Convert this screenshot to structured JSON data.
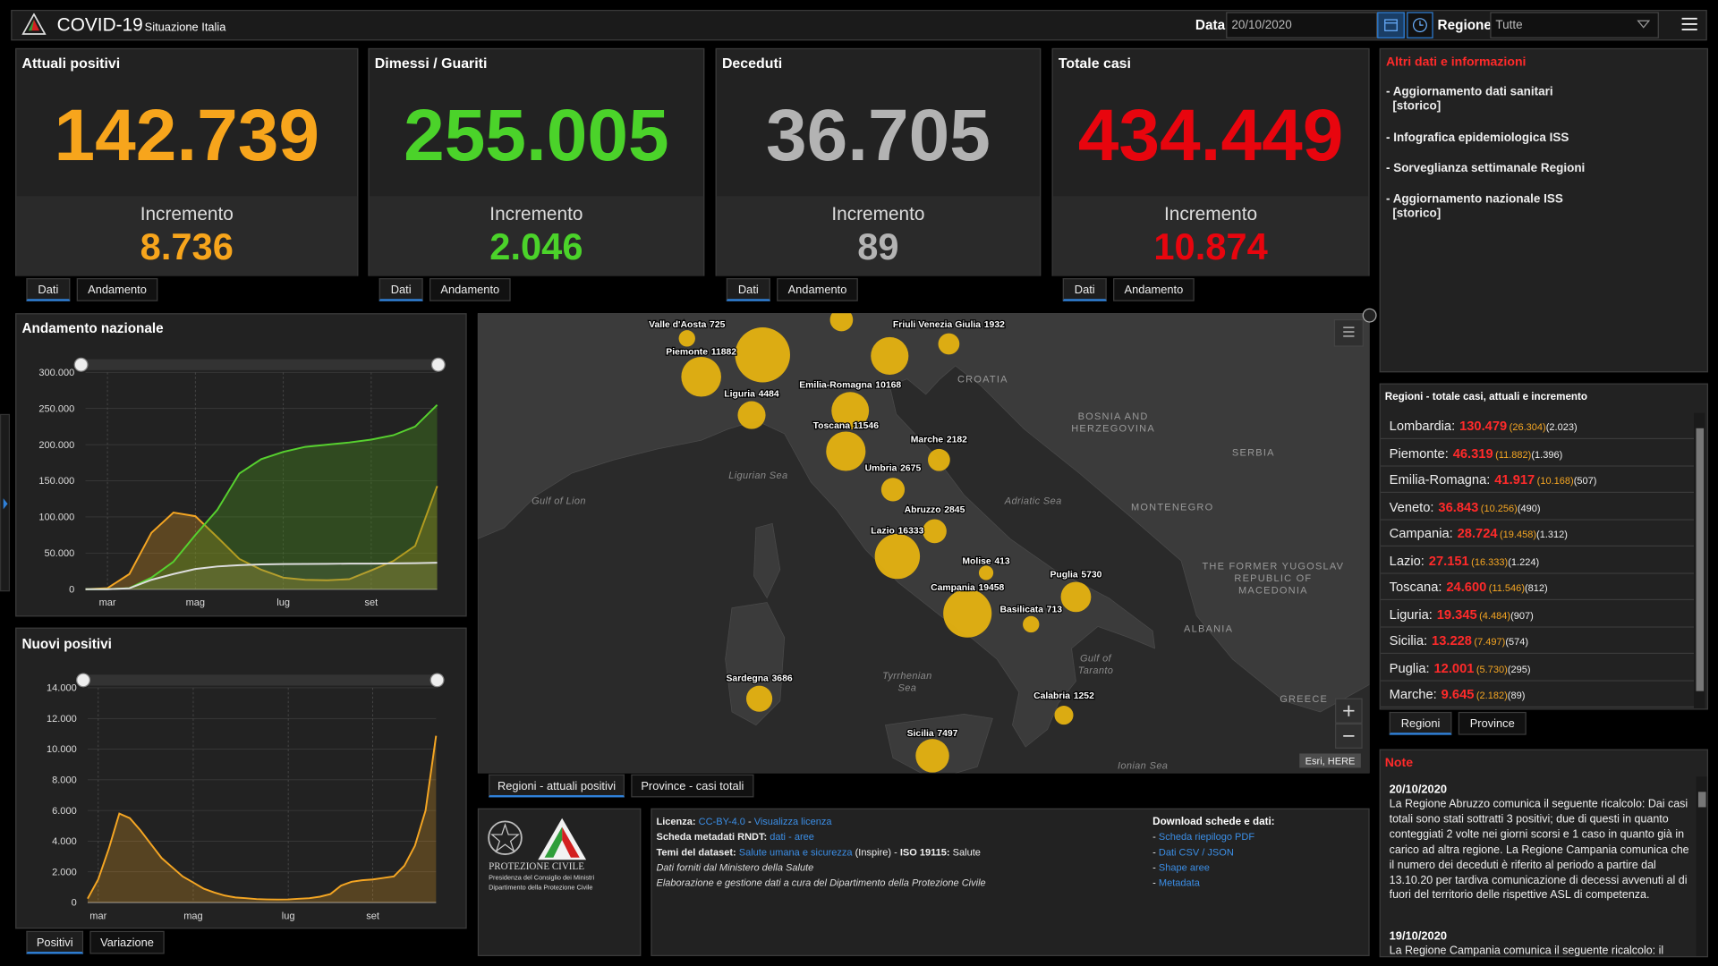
{
  "header": {
    "title": "COVID-19",
    "subtitle": "Situazione Italia",
    "date_label": "Data",
    "date": "20/10/2020",
    "region_label": "Regione",
    "region": "Tutte"
  },
  "cards": [
    {
      "title": "Attuali positivi",
      "value": "142.739",
      "increment_label": "Incremento",
      "increment": "8.736",
      "color": "#f7a51c",
      "tabs": [
        "Dati",
        "Andamento"
      ]
    },
    {
      "title": "Dimessi / Guariti",
      "value": "255.005",
      "increment_label": "Incremento",
      "increment": "2.046",
      "color": "#4bd32a",
      "tabs": [
        "Dati",
        "Andamento"
      ]
    },
    {
      "title": "Deceduti",
      "value": "36.705",
      "increment_label": "Incremento",
      "increment": "89",
      "color": "#b3b3b3",
      "tabs": [
        "Dati",
        "Andamento"
      ]
    },
    {
      "title": "Totale casi",
      "value": "434.449",
      "increment_label": "Incremento",
      "increment": "10.874",
      "color": "#e8050e",
      "tabs": [
        "Dati",
        "Andamento"
      ]
    }
  ],
  "info": {
    "title": "Altri dati e informazioni",
    "links": [
      [
        "- Aggiornamento dati sanitari",
        "[storico]"
      ],
      [
        "- Infografica epidemiologica ISS"
      ],
      [
        "- Sorveglianza settimanale Regioni"
      ],
      [
        "- Aggiornamento nazionale ISS",
        "[storico]"
      ]
    ]
  },
  "chart_data": [
    {
      "type": "line",
      "title": "Andamento nazionale",
      "categories": [
        null,
        "mar",
        null,
        null,
        null,
        "mag",
        null,
        null,
        null,
        "lug",
        null,
        null,
        null,
        "set",
        null,
        null,
        null
      ],
      "series": [
        {
          "color": "#f5a623",
          "fill": "rgba(245,166,35,0.28)",
          "values": [
            0,
            1500,
            21000,
            78000,
            106000,
            101000,
            72000,
            42000,
            27000,
            16000,
            13000,
            12400,
            14000,
            26000,
            39000,
            60000,
            142739
          ]
        },
        {
          "color": "#57d12f",
          "fill": "rgba(70,140,30,0.38)",
          "values": [
            0,
            100,
            1500,
            16000,
            38000,
            75000,
            110000,
            160000,
            180000,
            190000,
            197000,
            200000,
            203000,
            207000,
            213000,
            225000,
            255005
          ]
        },
        {
          "color": "#dddddd",
          "fill": "rgba(200,200,200,0.08)",
          "values": [
            0,
            30,
            1400,
            13000,
            21000,
            28000,
            31500,
            33400,
            34400,
            34800,
            35000,
            35100,
            35400,
            35500,
            35700,
            36000,
            36705
          ]
        }
      ],
      "ylim": [
        0,
        300000
      ],
      "yticks": [
        0,
        {
          "value": 50000,
          "label": "50.000"
        },
        {
          "value": 100000,
          "label": "100.000"
        },
        {
          "value": 150000,
          "label": "150.000"
        },
        {
          "value": 200000,
          "label": "200.000"
        },
        {
          "value": 250000,
          "label": "250.000"
        },
        {
          "value": 300000,
          "label": "300.000"
        }
      ],
      "grid": true
    },
    {
      "type": "area",
      "title": "Nuovi positivi",
      "categories": [
        null,
        "mar",
        null,
        null,
        null,
        null,
        null,
        null,
        null,
        null,
        "mag",
        null,
        null,
        null,
        null,
        null,
        null,
        null,
        null,
        "lug",
        null,
        null,
        null,
        null,
        null,
        null,
        null,
        "set",
        null,
        null,
        null,
        null,
        null,
        null
      ],
      "series": [
        {
          "color": "#f5a623",
          "fill": "rgba(245,166,35,0.25)",
          "values": [
            250,
            1500,
            3500,
            5800,
            5500,
            4700,
            3800,
            2900,
            2300,
            1700,
            1300,
            900,
            650,
            450,
            330,
            280,
            220,
            200,
            190,
            200,
            240,
            280,
            380,
            550,
            1100,
            1350,
            1450,
            1500,
            1600,
            1700,
            2400,
            3700,
            6000,
            10874
          ]
        }
      ],
      "ylim": [
        0,
        14000
      ],
      "yticks": [
        0,
        {
          "value": 2000,
          "label": "2.000"
        },
        {
          "value": 4000,
          "label": "4.000"
        },
        {
          "value": 6000,
          "label": "6.000"
        },
        {
          "value": 8000,
          "label": "8.000"
        },
        {
          "value": 10000,
          "label": "10.000"
        },
        {
          "value": 12000,
          "label": "12.000"
        },
        {
          "value": 14000,
          "label": "14.000"
        }
      ],
      "grid": true
    }
  ],
  "chart_tabs": [
    "Positivi",
    "Variazione"
  ],
  "map": {
    "bubbles": [
      {
        "name": "Valle d'Aosta",
        "value": 725
      },
      {
        "name": "Piemonte",
        "value": 11882
      },
      {
        "name": null,
        "value": 26304
      },
      {
        "name": null,
        "value": 2500
      },
      {
        "name": null,
        "value": 10256
      },
      {
        "name": "Friuli Venezia Giulia",
        "value": 1932
      },
      {
        "name": "Liguria",
        "value": 4484
      },
      {
        "name": "Emilia-Romagna",
        "value": 10168
      },
      {
        "name": "Toscana",
        "value": 11546
      },
      {
        "name": "Marche",
        "value": 2182
      },
      {
        "name": "Umbria",
        "value": 2675
      },
      {
        "name": "Abruzzo",
        "value": 2845
      },
      {
        "name": "Lazio",
        "value": 16333
      },
      {
        "name": "Molise",
        "value": 413
      },
      {
        "name": "Puglia",
        "value": 5730
      },
      {
        "name": "Campania",
        "value": 19458
      },
      {
        "name": "Basilicata",
        "value": 713
      },
      {
        "name": "Sardegna",
        "value": 3686
      },
      {
        "name": "Calabria",
        "value": 1252
      },
      {
        "name": "Sicilia",
        "value": 7497
      }
    ],
    "bubble_color": "#e5b211",
    "places": [
      {
        "lines": [
          "CROATIA"
        ],
        "kind": "country"
      },
      {
        "lines": [
          "BOSNIA AND",
          "HERZEGOVINA"
        ],
        "kind": "country"
      },
      {
        "lines": [
          "SERBIA"
        ],
        "kind": "country"
      },
      {
        "lines": [
          "MONTENEGRO"
        ],
        "kind": "country"
      },
      {
        "lines": [
          "THE FORMER YUGOSLAV",
          "REPUBLIC OF",
          "MACEDONIA"
        ],
        "kind": "country"
      },
      {
        "lines": [
          "ALBANIA"
        ],
        "kind": "country"
      },
      {
        "lines": [
          "GREECE"
        ],
        "kind": "country"
      },
      {
        "lines": [
          "Ligurian Sea"
        ],
        "kind": "sea"
      },
      {
        "lines": [
          "Gulf of Lion"
        ],
        "kind": "sea"
      },
      {
        "lines": [
          "Adriatic Sea"
        ],
        "kind": "sea"
      },
      {
        "lines": [
          "Tyrrhenian",
          "Sea"
        ],
        "kind": "sea"
      },
      {
        "lines": [
          "Gulf of",
          "Taranto"
        ],
        "kind": "sea"
      },
      {
        "lines": [
          "Ionian Sea"
        ],
        "kind": "sea"
      }
    ],
    "attribution": "Esri, HERE",
    "tabs": [
      "Regioni - attuali positivi",
      "Province - casi totali"
    ]
  },
  "regions": {
    "title": "Regioni - totale casi, attuali e incremento",
    "rows": [
      {
        "name": "Lombardia:",
        "total": "130.479",
        "current": "(26.304)",
        "increment": "(2.023)"
      },
      {
        "name": "Piemonte:",
        "total": "46.319",
        "current": "(11.882)",
        "increment": "(1.396)"
      },
      {
        "name": "Emilia-Romagna:",
        "total": "41.917",
        "current": "(10.168)",
        "increment": "(507)"
      },
      {
        "name": "Veneto:",
        "total": "36.843",
        "current": "(10.256)",
        "increment": "(490)"
      },
      {
        "name": "Campania:",
        "total": "28.724",
        "current": "(19.458)",
        "increment": "(1.312)"
      },
      {
        "name": "Lazio:",
        "total": "27.151",
        "current": "(16.333)",
        "increment": "(1.224)"
      },
      {
        "name": "Toscana:",
        "total": "24.600",
        "current": "(11.546)",
        "increment": "(812)"
      },
      {
        "name": "Liguria:",
        "total": "19.345",
        "current": "(4.484)",
        "increment": "(907)"
      },
      {
        "name": "Sicilia:",
        "total": "13.228",
        "current": "(7.497)",
        "increment": "(574)"
      },
      {
        "name": "Puglia:",
        "total": "12.001",
        "current": "(5.730)",
        "increment": "(295)"
      },
      {
        "name": "Marche:",
        "total": "9.645",
        "current": "(2.182)",
        "increment": "(89)"
      }
    ],
    "tabs": [
      "Regioni",
      "Province"
    ]
  },
  "notes": {
    "title": "Note",
    "entries": [
      {
        "date": "20/10/2020",
        "text": "La Regione Abruzzo comunica il seguente ricalcolo: Dai casi totali sono stati sottratti 3 positivi; due di questi in quanto conteggiati 2 volte nei giorni scorsi e 1 caso in quanto già in carico ad altra regione. La Regione Campania comunica che il numero dei deceduti è riferito al periodo a partire dal 13.10.20 per tardiva comunicazione di decessi avvenuti al di fuori del territorio delle rispettive ASL di competenza."
      },
      {
        "date": "19/10/2020",
        "text": "La Regione Campania comunica il seguente ricalcolo: il"
      }
    ]
  },
  "footer": {
    "logo_lines": [
      "PROTEZIONE CIVILE",
      "Presidenza del Consiglio dei Ministri",
      "Dipartimento della Protezione Civile"
    ],
    "license": [
      [
        {
          "text": "Licenza: ",
          "style": "bold"
        },
        {
          "text": "CC-BY-4.0",
          "style": "link"
        },
        {
          "text": " - ",
          "style": "plain"
        },
        {
          "text": "Visualizza licenza",
          "style": "link"
        }
      ],
      [
        {
          "text": "Scheda metadati RNDT: ",
          "style": "bold"
        },
        {
          "text": "dati",
          "style": "link"
        },
        {
          "text": " - ",
          "style": "link"
        },
        {
          "text": "aree",
          "style": "link"
        }
      ],
      [
        {
          "text": "Temi del dataset: ",
          "style": "bold"
        },
        {
          "text": "Salute umana e sicurezza",
          "style": "link"
        },
        {
          "text": " (Inspire) - ",
          "style": "plain"
        },
        {
          "text": "ISO 19115: ",
          "style": "bold"
        },
        {
          "text": "Salute",
          "style": "plain"
        }
      ],
      [
        {
          "text": "Dati forniti dal Ministero della Salute",
          "style": "italic"
        }
      ],
      [
        {
          "text": "Elaborazione e gestione dati a cura del Dipartimento della Protezione Civile",
          "style": "italic"
        }
      ]
    ],
    "download_title": "Download schede e dati:",
    "downloads": [
      [
        {
          "text": "- ",
          "style": "plain"
        },
        {
          "text": "Scheda riepilogo PDF",
          "style": "link"
        }
      ],
      [
        {
          "text": "- ",
          "style": "plain"
        },
        {
          "text": "Dati CSV / JSON",
          "style": "link"
        }
      ],
      [
        {
          "text": "- ",
          "style": "plain"
        },
        {
          "text": "Shape aree",
          "style": "link"
        }
      ],
      [
        {
          "text": "- ",
          "style": "plain"
        },
        {
          "text": "Metadata",
          "style": "link"
        }
      ]
    ]
  }
}
